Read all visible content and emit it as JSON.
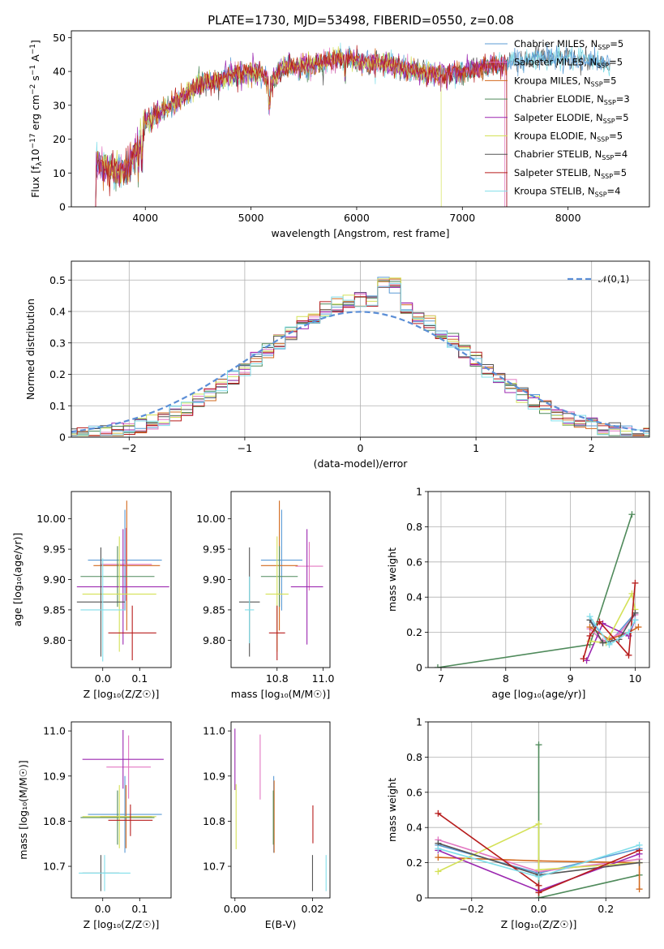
{
  "figure_title": "PLATE=1730, MJD=53498, FIBERID=0550, z=0.08",
  "models": [
    {
      "name": "Chabrier MILES, N_SSP=5",
      "base": "Chabrier MILES, N",
      "sub": "SSP",
      "suffix": "=5",
      "color": "#5b9bd5"
    },
    {
      "name": "Salpeter MILES, N_SSP=5",
      "base": "Salpeter MILES, N",
      "sub": "SSP",
      "suffix": "=5",
      "color": "#e377c2"
    },
    {
      "name": "Kroupa MILES, N_SSP=5",
      "base": "Kroupa MILES, N",
      "sub": "SSP",
      "suffix": "=5",
      "color": "#d2691e"
    },
    {
      "name": "Chabrier ELODIE, N_SSP=3",
      "base": "Chabrier ELODIE, N",
      "sub": "SSP",
      "suffix": "=3",
      "color": "#4f8a5b"
    },
    {
      "name": "Salpeter ELODIE, N_SSP=5",
      "base": "Salpeter ELODIE, N",
      "sub": "SSP",
      "suffix": "=5",
      "color": "#9b27b0"
    },
    {
      "name": "Kroupa ELODIE, N_SSP=5",
      "base": "Kroupa ELODIE, N",
      "sub": "SSP",
      "suffix": "=5",
      "color": "#d4e157"
    },
    {
      "name": "Chabrier STELIB, N_SSP=4",
      "base": "Chabrier STELIB, N",
      "sub": "SSP",
      "suffix": "=4",
      "color": "#555555"
    },
    {
      "name": "Salpeter STELIB, N_SSP=5",
      "base": "Salpeter STELIB, N",
      "sub": "SSP",
      "suffix": "=5",
      "color": "#b71c1c"
    },
    {
      "name": "Kroupa STELIB, N_SSP=4",
      "base": "Kroupa STELIB, N",
      "sub": "SSP",
      "suffix": "=4",
      "color": "#80deea"
    }
  ],
  "chart_data": [
    {
      "id": "spectrum",
      "type": "line",
      "xlabel": "wavelength [Angstrom, rest frame]",
      "ylabel_text": "Flux [f",
      "ylabel_sub": "λ",
      "ylabel_rest": "10",
      "ylabel_sup": "−17",
      "ylabel_unit": " erg cm",
      "ylabel_sup2": "−2",
      "ylabel_unit2": " s",
      "ylabel_sup3": "−1",
      "ylabel_unit3": " A",
      "ylabel_sup4": "−1",
      "ylabel_end": "]",
      "xlim": [
        3300,
        8770
      ],
      "ylim": [
        0,
        52
      ],
      "xticks": [
        4000,
        5000,
        6000,
        7000,
        8000
      ],
      "yticks": [
        0,
        10,
        20,
        30,
        40,
        50
      ],
      "legend_position": "right",
      "continuum": [
        [
          3530,
          12
        ],
        [
          3700,
          11
        ],
        [
          3850,
          12
        ],
        [
          3950,
          20
        ],
        [
          4000,
          25
        ],
        [
          4150,
          28
        ],
        [
          4300,
          31
        ],
        [
          4500,
          36
        ],
        [
          4800,
          39
        ],
        [
          5100,
          40
        ],
        [
          5175,
          36
        ],
        [
          5300,
          41
        ],
        [
          5600,
          42
        ],
        [
          5890,
          44
        ],
        [
          6000,
          43
        ],
        [
          6300,
          42
        ],
        [
          6563,
          40
        ],
        [
          6800,
          39
        ],
        [
          7000,
          40
        ],
        [
          7300,
          42
        ],
        [
          7700,
          44
        ],
        [
          8000,
          44
        ],
        [
          8400,
          42
        ]
      ]
    },
    {
      "id": "residuals",
      "type": "step",
      "xlabel": "(data-model)/error",
      "ylabel": "Normed distribution",
      "xlim": [
        -2.5,
        2.5
      ],
      "ylim": [
        0,
        0.56
      ],
      "xticks": [
        -2,
        -1,
        0,
        1,
        2
      ],
      "yticks": [
        0.0,
        0.1,
        0.2,
        0.3,
        0.4,
        0.5
      ],
      "bin_width": 0.1,
      "reference_label": "𝒩(0,1)",
      "reference_color": "#5b8ed6",
      "reference_peak": 0.4,
      "grid": true,
      "legend_position": "top-right"
    },
    {
      "id": "age_vs_Z",
      "type": "errorbar",
      "xlabel": "Z [log₁₀(Z/Z☉)]",
      "ylabel": "age  [log₁₀(age/yr)]",
      "xlim": [
        -0.085,
        0.185
      ],
      "ylim": [
        9.755,
        10.045
      ],
      "xticks": [
        0.0,
        0.1
      ],
      "xtick_labels": [
        "0.0",
        "0.1"
      ],
      "yticks": [
        9.8,
        9.85,
        9.9,
        9.95,
        10.0
      ],
      "ytick_labels": [
        "9.80",
        "9.85",
        "9.90",
        "9.95",
        "10.00"
      ],
      "points": [
        {
          "model": 0,
          "x": 0.06,
          "xerr": 0.1,
          "y": 9.932,
          "yerr": 0.083
        },
        {
          "model": 1,
          "x": 0.063,
          "xerr": 0.07,
          "y": 9.925,
          "yerr": 0.06
        },
        {
          "model": 2,
          "x": 0.065,
          "xerr": 0.09,
          "y": 9.923,
          "yerr": 0.107
        },
        {
          "model": 3,
          "x": 0.04,
          "xerr": 0.1,
          "y": 9.905,
          "yerr": 0.05
        },
        {
          "model": 4,
          "x": 0.055,
          "xerr": 0.125,
          "y": 9.888,
          "yerr": 0.095
        },
        {
          "model": 5,
          "x": 0.045,
          "xerr": 0.1,
          "y": 9.876,
          "yerr": 0.095
        },
        {
          "model": 6,
          "x": -0.005,
          "xerr": 0.065,
          "y": 9.863,
          "yerr": 0.09
        },
        {
          "model": 7,
          "x": 0.08,
          "xerr": 0.065,
          "y": 9.812,
          "yerr": 0.045
        },
        {
          "model": 8,
          "x": 0.0,
          "xerr": 0.06,
          "y": 9.85,
          "yerr": 0.085
        }
      ]
    },
    {
      "id": "age_vs_mass",
      "type": "errorbar",
      "xlabel": "mass [log₁₀(M/M☉)]",
      "xlim": [
        10.6,
        11.03
      ],
      "ylim": [
        9.755,
        10.045
      ],
      "xticks": [
        10.8,
        11.0
      ],
      "xtick_labels": [
        "10.8",
        "11.0"
      ],
      "yticks": [
        9.8,
        9.85,
        9.9,
        9.95,
        10.0
      ],
      "ytick_labels": [
        "9.80",
        "9.85",
        "9.90",
        "9.95",
        "10.00"
      ],
      "points": [
        {
          "model": 0,
          "x": 10.82,
          "xerr": 0.09,
          "y": 9.932,
          "yerr": 0.083
        },
        {
          "model": 1,
          "x": 10.94,
          "xerr": 0.06,
          "y": 9.922,
          "yerr": 0.04
        },
        {
          "model": 2,
          "x": 10.81,
          "xerr": 0.08,
          "y": 9.923,
          "yerr": 0.107
        },
        {
          "model": 3,
          "x": 10.81,
          "xerr": 0.08,
          "y": 9.905,
          "yerr": 0.05
        },
        {
          "model": 4,
          "x": 10.93,
          "xerr": 0.07,
          "y": 9.888,
          "yerr": 0.095
        },
        {
          "model": 5,
          "x": 10.8,
          "xerr": 0.05,
          "y": 9.876,
          "yerr": 0.095
        },
        {
          "model": 6,
          "x": 10.68,
          "xerr": 0.045,
          "y": 9.863,
          "yerr": 0.09
        },
        {
          "model": 7,
          "x": 10.8,
          "xerr": 0.035,
          "y": 9.812,
          "yerr": 0.045
        },
        {
          "model": 8,
          "x": 10.68,
          "xerr": 0.02,
          "y": 9.85,
          "yerr": 0.055
        }
      ]
    },
    {
      "id": "mass_weight_vs_age",
      "type": "line",
      "xlabel": "age  [log₁₀(age/yr)]",
      "ylabel": "mass weight",
      "xlim": [
        6.8,
        10.22
      ],
      "ylim": [
        0,
        1
      ],
      "xticks": [
        7,
        8,
        9,
        10
      ],
      "yticks": [
        0.0,
        0.2,
        0.4,
        0.6,
        0.8,
        1.0
      ],
      "grid": true,
      "series": [
        {
          "model": 3,
          "x": [
            6.95,
            9.3,
            9.95
          ],
          "y": [
            0.0,
            0.13,
            0.87
          ]
        },
        {
          "model": 0,
          "x": [
            9.3,
            9.6,
            10.0
          ],
          "y": [
            0.27,
            0.14,
            0.31
          ]
        },
        {
          "model": 1,
          "x": [
            9.3,
            9.5,
            9.75,
            10.0
          ],
          "y": [
            0.22,
            0.15,
            0.19,
            0.3
          ]
        },
        {
          "model": 2,
          "x": [
            9.3,
            9.6,
            9.9,
            10.05
          ],
          "y": [
            0.23,
            0.16,
            0.2,
            0.23
          ]
        },
        {
          "model": 4,
          "x": [
            9.25,
            9.5,
            9.9,
            10.0
          ],
          "y": [
            0.04,
            0.25,
            0.18,
            0.27
          ]
        },
        {
          "model": 5,
          "x": [
            9.3,
            9.55,
            9.95,
            10.0
          ],
          "y": [
            0.15,
            0.14,
            0.42,
            0.33
          ]
        },
        {
          "model": 6,
          "x": [
            9.3,
            9.5,
            9.75,
            10.0
          ],
          "y": [
            0.27,
            0.14,
            0.16,
            0.31
          ]
        },
        {
          "model": 7,
          "x": [
            9.2,
            9.3,
            9.45,
            9.9,
            10.0
          ],
          "y": [
            0.05,
            0.18,
            0.26,
            0.07,
            0.48
          ]
        },
        {
          "model": 8,
          "x": [
            9.3,
            9.6,
            9.9,
            10.0
          ],
          "y": [
            0.29,
            0.13,
            0.2,
            0.27
          ]
        }
      ]
    },
    {
      "id": "mass_vs_Z",
      "type": "errorbar",
      "xlabel": "Z [log₁₀(Z/Z☉)]",
      "ylabel": "mass [log₁₀(M/M☉)]",
      "xlim": [
        -0.085,
        0.185
      ],
      "ylim": [
        10.63,
        11.02
      ],
      "xticks": [
        0.0,
        0.1
      ],
      "xtick_labels": [
        "0.0",
        "0.1"
      ],
      "yticks": [
        10.7,
        10.8,
        10.9,
        11.0
      ],
      "ytick_labels": [
        "10.7",
        "10.8",
        "10.9",
        "11.0"
      ],
      "points": [
        {
          "model": 0,
          "x": 0.06,
          "xerr": 0.1,
          "y": 10.815,
          "yerr": 0.085
        },
        {
          "model": 1,
          "x": 0.07,
          "xerr": 0.06,
          "y": 10.92,
          "yerr": 0.07
        },
        {
          "model": 2,
          "x": 0.063,
          "xerr": 0.07,
          "y": 10.81,
          "yerr": 0.07
        },
        {
          "model": 3,
          "x": 0.04,
          "xerr": 0.1,
          "y": 10.808,
          "yerr": 0.06
        },
        {
          "model": 4,
          "x": 0.055,
          "xerr": 0.11,
          "y": 10.937,
          "yerr": 0.065
        },
        {
          "model": 5,
          "x": 0.045,
          "xerr": 0.1,
          "y": 10.81,
          "yerr": 0.07
        },
        {
          "model": 6,
          "x": -0.005,
          "xerr": 0.05,
          "y": 10.685,
          "yerr": 0.04
        },
        {
          "model": 7,
          "x": 0.075,
          "xerr": 0.06,
          "y": 10.802,
          "yerr": 0.035
        },
        {
          "model": 8,
          "x": 0.005,
          "xerr": 0.07,
          "y": 10.685,
          "yerr": 0.04
        }
      ]
    },
    {
      "id": "mass_vs_EBV",
      "type": "errorbar",
      "xlabel": "E(B-V)",
      "xlim": [
        -0.001,
        0.0245
      ],
      "ylim": [
        10.63,
        11.02
      ],
      "xticks": [
        0.0,
        0.02
      ],
      "xtick_labels": [
        "0.00",
        "0.02"
      ],
      "yticks": [
        10.7,
        10.8,
        10.9,
        11.0
      ],
      "ytick_labels": [
        "10.7",
        "10.8",
        "10.9",
        "11.0"
      ],
      "points": [
        {
          "model": 0,
          "x": 0.01,
          "xerr": 0,
          "y": 10.815,
          "yerr": 0.085
        },
        {
          "model": 1,
          "x": 0.0065,
          "xerr": 0,
          "y": 10.92,
          "yerr": 0.072
        },
        {
          "model": 2,
          "x": 0.0101,
          "xerr": 0,
          "y": 10.81,
          "yerr": 0.08
        },
        {
          "model": 3,
          "x": 0.0099,
          "xerr": 0,
          "y": 10.808,
          "yerr": 0.06
        },
        {
          "model": 4,
          "x": 0.0,
          "xerr": 0,
          "y": 10.937,
          "yerr": 0.068
        },
        {
          "model": 5,
          "x": 0.0003,
          "xerr": 0,
          "y": 10.81,
          "yerr": 0.072
        },
        {
          "model": 6,
          "x": 0.02,
          "xerr": 0,
          "y": 10.685,
          "yerr": 0.04
        },
        {
          "model": 7,
          "x": 0.0201,
          "xerr": 0,
          "y": 10.793,
          "yerr": 0.042
        },
        {
          "model": 8,
          "x": 0.0235,
          "xerr": 0,
          "y": 10.685,
          "yerr": 0.04
        }
      ]
    },
    {
      "id": "mass_weight_vs_Z",
      "type": "line",
      "xlabel": "Z [log₁₀(Z/Z☉)]",
      "ylabel": "mass weight",
      "xlim": [
        -0.33,
        0.33
      ],
      "ylim": [
        0,
        1
      ],
      "xticks": [
        -0.2,
        0.0,
        0.2
      ],
      "xtick_labels": [
        "−0.2",
        "0.0",
        "0.2"
      ],
      "yticks": [
        0.0,
        0.2,
        0.4,
        0.6,
        0.8,
        1.0
      ],
      "grid": true,
      "series": [
        {
          "model": 3,
          "x": [
            0.0,
            0.0,
            0.3
          ],
          "y": [
            0.87,
            0.0,
            0.13
          ]
        },
        {
          "model": 0,
          "x": [
            -0.3,
            0.0,
            0.3
          ],
          "y": [
            0.3,
            0.14,
            0.28
          ]
        },
        {
          "model": 1,
          "x": [
            -0.3,
            0.0,
            0.3
          ],
          "y": [
            0.33,
            0.15,
            0.22
          ]
        },
        {
          "model": 2,
          "x": [
            -0.3,
            0.0,
            0.3,
            0.3
          ],
          "y": [
            0.23,
            0.21,
            0.2,
            0.05
          ]
        },
        {
          "model": 4,
          "x": [
            -0.3,
            0.0,
            0.3
          ],
          "y": [
            0.27,
            0.04,
            0.25
          ]
        },
        {
          "model": 5,
          "x": [
            -0.3,
            0.0,
            0.0,
            0.3
          ],
          "y": [
            0.15,
            0.42,
            0.16,
            0.2
          ]
        },
        {
          "model": 6,
          "x": [
            -0.3,
            0.0,
            0.3
          ],
          "y": [
            0.31,
            0.13,
            0.2
          ]
        },
        {
          "model": 7,
          "x": [
            -0.3,
            0.0,
            0.0,
            0.3
          ],
          "y": [
            0.48,
            0.07,
            0.03,
            0.27
          ]
        },
        {
          "model": 8,
          "x": [
            -0.3,
            0.0,
            0.3
          ],
          "y": [
            0.28,
            0.12,
            0.3
          ]
        }
      ]
    }
  ]
}
